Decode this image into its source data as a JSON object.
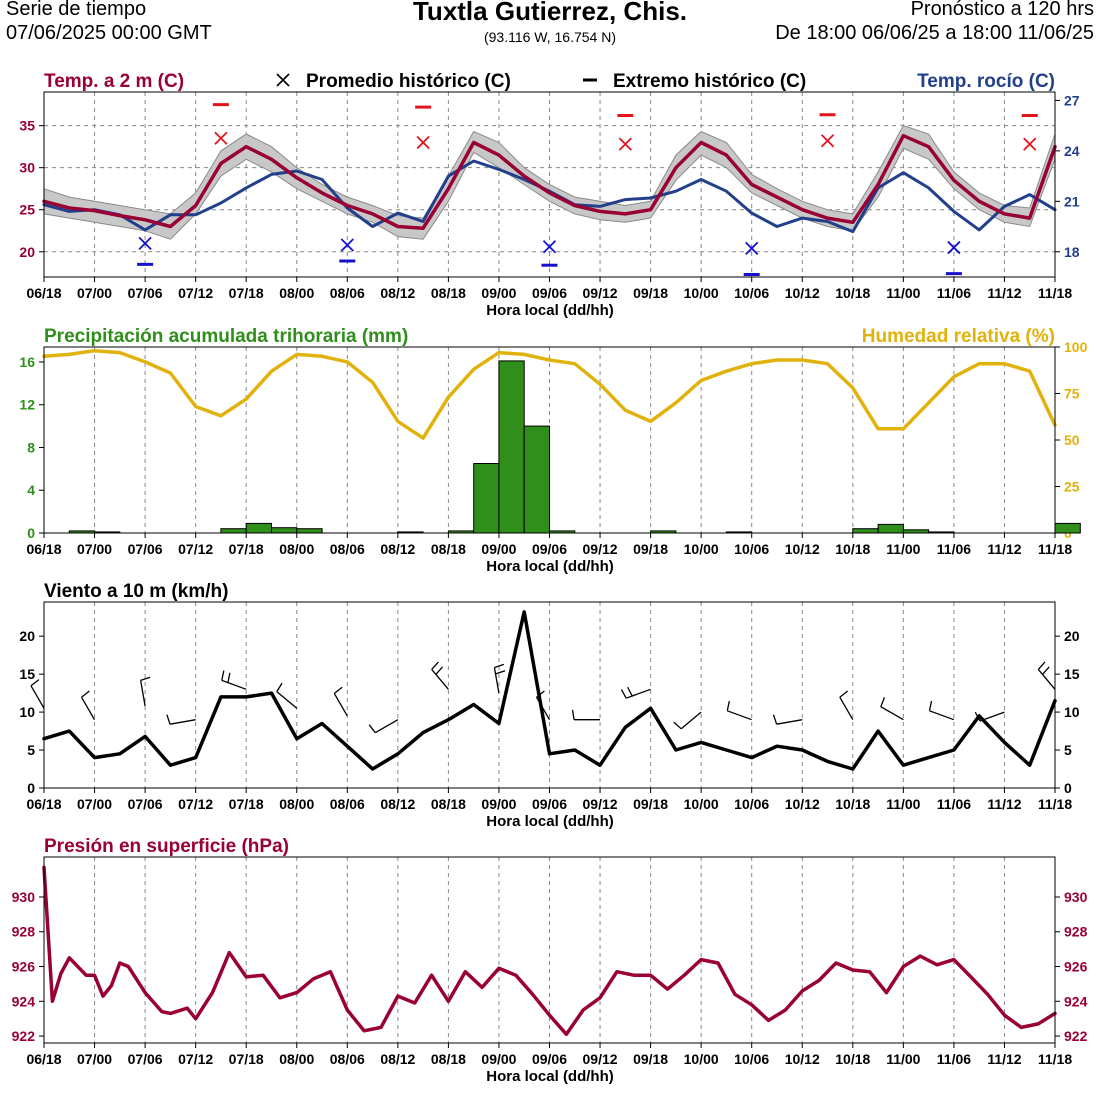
{
  "header": {
    "left_line1": "Serie de tiempo",
    "left_line2": "07/06/2025 00:00 GMT",
    "title": "Tuxtla Gutierrez,  Chis.",
    "coords": "(93.116 W, 16.754 N)",
    "right_line1": "Pronóstico a 120 hrs",
    "right_line2": "De 18:00 06/06/25 a 18:00 11/06/25"
  },
  "x_ticks": [
    "06/18",
    "07/00",
    "07/06",
    "07/12",
    "07/18",
    "08/00",
    "08/06",
    "08/12",
    "08/18",
    "09/00",
    "09/06",
    "09/12",
    "09/18",
    "10/00",
    "10/06",
    "10/12",
    "10/18",
    "11/00",
    "11/06",
    "11/12",
    "11/18"
  ],
  "x_label": "Hora local (dd/hh)",
  "colors": {
    "temp": "#990033",
    "dew": "#223f8c",
    "hist_avg_temp": "#e3141d",
    "hist_ext_temp": "#e3141d",
    "hist_avg_dew": "#1313cc",
    "hist_ext_dew": "#1313cc",
    "precip": "#2f8f1a",
    "humidity": "#e2b20c",
    "wind": "#000000",
    "pressure": "#990033",
    "band": "#c8c8c8"
  },
  "chart_data": [
    {
      "type": "line",
      "title": "Temp. a 2 m (C)",
      "legend": [
        "Promedio histórico (C)",
        "Extremo histórico (C)"
      ],
      "right_title": "Temp. rocío (C)",
      "ylim": [
        17,
        39
      ],
      "yticks": [
        20,
        25,
        30,
        35
      ],
      "y2lim": [
        16.5,
        27.5
      ],
      "y2ticks": [
        18,
        21,
        24,
        27
      ],
      "x": [
        0,
        3,
        6,
        9,
        12,
        15,
        18,
        21,
        24,
        27,
        30,
        33,
        36,
        39,
        42,
        45,
        48,
        51,
        54,
        57,
        60,
        63,
        66,
        69,
        72,
        75,
        78,
        81,
        84,
        87,
        90,
        93,
        96,
        99,
        102,
        105,
        108,
        111,
        114,
        117,
        120
      ],
      "series": [
        {
          "name": "Temp. a 2 m",
          "values": [
            26.0,
            25.2,
            24.9,
            24.3,
            23.8,
            23.0,
            25.5,
            30.5,
            32.5,
            31.0,
            28.8,
            27.0,
            25.5,
            24.5,
            23.0,
            22.8,
            27.5,
            33.0,
            31.5,
            29.0,
            27.0,
            25.5,
            24.8,
            24.5,
            25.0,
            30.0,
            33.0,
            31.5,
            28.0,
            26.5,
            25.0,
            24.0,
            23.5,
            28.0,
            33.8,
            32.5,
            28.5,
            26.0,
            24.5,
            24.0,
            32.5
          ]
        },
        {
          "name": "Temp. rocío",
          "values": [
            20.8,
            20.4,
            20.5,
            20.2,
            19.3,
            20.2,
            20.2,
            20.9,
            21.8,
            22.6,
            22.8,
            22.3,
            20.6,
            19.5,
            20.3,
            19.8,
            22.5,
            23.4,
            22.9,
            22.3,
            21.6,
            20.8,
            20.7,
            21.1,
            21.2,
            21.6,
            22.3,
            21.6,
            20.3,
            19.5,
            20.0,
            19.8,
            19.2,
            21.8,
            22.7,
            21.8,
            20.4,
            19.3,
            20.7,
            21.4,
            20.5
          ]
        },
        {
          "name": "Temp. band low",
          "values": [
            24.5,
            24.0,
            23.5,
            23.0,
            22.5,
            21.5,
            24.5,
            29.0,
            31.0,
            29.5,
            27.5,
            26.0,
            24.5,
            23.5,
            21.8,
            21.5,
            26.0,
            31.8,
            30.0,
            28.0,
            26.0,
            24.5,
            23.8,
            23.5,
            24.0,
            28.5,
            31.5,
            30.0,
            27.0,
            25.5,
            24.0,
            23.0,
            22.5,
            26.5,
            32.3,
            31.0,
            27.5,
            25.0,
            23.5,
            23.0,
            31.0
          ]
        },
        {
          "name": "Temp. band high",
          "values": [
            27.5,
            26.5,
            26.0,
            25.5,
            25.0,
            24.5,
            27.0,
            32.0,
            34.0,
            32.5,
            30.0,
            28.0,
            26.5,
            25.5,
            24.3,
            24.0,
            29.0,
            34.3,
            33.0,
            30.0,
            28.0,
            26.5,
            26.0,
            25.5,
            26.0,
            31.5,
            34.3,
            33.0,
            29.2,
            27.5,
            26.0,
            25.0,
            24.5,
            29.5,
            35.0,
            34.0,
            29.5,
            27.0,
            25.5,
            25.2,
            34.0
          ]
        }
      ],
      "hist_temp_avg": [
        {
          "x": 12,
          "y": 21.0
        },
        {
          "x": 21,
          "y": 33.5
        },
        {
          "x": 36,
          "y": 20.8
        },
        {
          "x": 45,
          "y": 33.0
        },
        {
          "x": 60,
          "y": 20.6
        },
        {
          "x": 69,
          "y": 32.8
        },
        {
          "x": 84,
          "y": 20.4
        },
        {
          "x": 93,
          "y": 33.2
        },
        {
          "x": 108,
          "y": 20.5
        },
        {
          "x": 117,
          "y": 32.8
        }
      ],
      "hist_temp_ext": [
        {
          "x": 12,
          "y": 18.5
        },
        {
          "x": 21,
          "y": 37.5
        },
        {
          "x": 36,
          "y": 18.9
        },
        {
          "x": 45,
          "y": 37.2
        },
        {
          "x": 60,
          "y": 18.4
        },
        {
          "x": 69,
          "y": 36.2
        },
        {
          "x": 84,
          "y": 17.3
        },
        {
          "x": 93,
          "y": 36.3
        },
        {
          "x": 108,
          "y": 17.4
        },
        {
          "x": 117,
          "y": 36.2
        }
      ],
      "hist_series_colors": [
        "dew",
        "temp",
        "dew",
        "temp",
        "dew",
        "temp",
        "dew",
        "temp",
        "dew",
        "temp"
      ]
    },
    {
      "type": "bar",
      "title": "Precipitación acumulada trihoraria (mm)",
      "right_title": "Humedad relativa (%)",
      "ylim": [
        0,
        17.4
      ],
      "yticks": [
        0,
        4,
        8,
        12,
        16
      ],
      "y2lim": [
        0,
        100
      ],
      "y2ticks": [
        0,
        25,
        50,
        75,
        100
      ],
      "precip_values": [
        0.0,
        0.2,
        0.1,
        0.0,
        0.0,
        0.0,
        0.0,
        0.4,
        0.9,
        0.5,
        0.4,
        0.0,
        0.0,
        0.0,
        0.1,
        0.0,
        0.2,
        6.5,
        16.1,
        10.0,
        0.2,
        0.0,
        0.0,
        0.0,
        0.2,
        0.0,
        0.0,
        0.1,
        0.0,
        0.0,
        0.0,
        0.0,
        0.4,
        0.8,
        0.3,
        0.1,
        0.0,
        0.0,
        0.0,
        0.0,
        0.9
      ],
      "humidity_x": [
        0,
        3,
        6,
        9,
        12,
        15,
        18,
        21,
        24,
        27,
        30,
        33,
        36,
        39,
        42,
        45,
        48,
        51,
        54,
        57,
        60,
        63,
        66,
        69,
        72,
        75,
        78,
        81,
        84,
        87,
        90,
        93,
        96,
        99,
        102,
        105,
        108,
        111,
        114,
        117,
        120
      ],
      "humidity_values": [
        95,
        96,
        98,
        97,
        92,
        86,
        68,
        63,
        72,
        87,
        96,
        95,
        92,
        81,
        60,
        51,
        73,
        88,
        97,
        96,
        93,
        91,
        80,
        66,
        60,
        70,
        82,
        87,
        91,
        93,
        93,
        91,
        78,
        56,
        56,
        70,
        84,
        91,
        91,
        87,
        58
      ]
    },
    {
      "type": "line",
      "title": "Viento a 10 m (km/h)",
      "ylim": [
        0,
        24.5
      ],
      "yticks": [
        0,
        5,
        10,
        15,
        20
      ],
      "x": [
        0,
        3,
        6,
        9,
        12,
        15,
        18,
        21,
        24,
        27,
        30,
        33,
        36,
        39,
        42,
        45,
        48,
        51,
        54,
        57,
        60,
        63,
        66,
        69,
        72,
        75,
        78,
        81,
        84,
        87,
        90,
        93,
        96,
        99,
        102,
        105,
        108,
        111,
        114,
        117,
        120
      ],
      "values": [
        6.5,
        7.5,
        4.0,
        4.5,
        6.8,
        3.0,
        4.0,
        12.0,
        12.0,
        12.5,
        6.5,
        8.5,
        5.5,
        2.5,
        4.5,
        7.3,
        9.0,
        11.0,
        8.5,
        23.2,
        4.5,
        5.0,
        3.0,
        8.0,
        10.5,
        5.0,
        6.0,
        5.0,
        4.0,
        5.5,
        5.0,
        3.5,
        2.5,
        7.5,
        3.0,
        4.0,
        5.0,
        9.5,
        6.0,
        3.0,
        11.5
      ],
      "barb_x": [
        0,
        6,
        12,
        18,
        24,
        30,
        36,
        42,
        48,
        54,
        60,
        66,
        72,
        78,
        84,
        90,
        96,
        102,
        108,
        114,
        120
      ],
      "barb_directions_deg": [
        330,
        330,
        350,
        260,
        290,
        310,
        330,
        240,
        320,
        350,
        330,
        270,
        250,
        230,
        290,
        260,
        330,
        300,
        290,
        250,
        320
      ]
    },
    {
      "type": "line",
      "title": "Presión en superficie (hPa)",
      "ylim": [
        921.6,
        932.3
      ],
      "yticks": [
        922,
        924,
        926,
        928,
        930
      ],
      "x": [
        0,
        1,
        2,
        3,
        5,
        6,
        7,
        8,
        9,
        10,
        12,
        14,
        15,
        17,
        18,
        20,
        22,
        24,
        26,
        28,
        30,
        32,
        34,
        36,
        38,
        40,
        42,
        44,
        46,
        48,
        50,
        52,
        54,
        56,
        58,
        60,
        62,
        64,
        66,
        68,
        70,
        72,
        74,
        76,
        78,
        80,
        82,
        84,
        86,
        88,
        90,
        92,
        94,
        96,
        98,
        100,
        102,
        104,
        106,
        108,
        110,
        112,
        114,
        116,
        118,
        120
      ],
      "values": [
        931.7,
        924.0,
        925.6,
        926.5,
        925.5,
        925.5,
        924.3,
        924.9,
        926.2,
        926.0,
        924.5,
        923.4,
        923.3,
        923.6,
        923.0,
        924.5,
        926.8,
        925.4,
        925.5,
        924.2,
        924.5,
        925.3,
        925.7,
        923.5,
        922.3,
        922.5,
        924.3,
        923.9,
        925.5,
        924.0,
        925.7,
        924.8,
        925.9,
        925.5,
        924.4,
        923.2,
        922.1,
        923.5,
        924.2,
        925.7,
        925.5,
        925.5,
        924.7,
        925.5,
        926.4,
        926.2,
        924.4,
        923.8,
        922.9,
        923.5,
        924.6,
        925.2,
        926.2,
        925.8,
        925.7,
        924.5,
        926.0,
        926.6,
        926.1,
        926.4,
        925.4,
        924.4,
        923.2,
        922.5,
        922.7,
        923.3
      ]
    }
  ]
}
